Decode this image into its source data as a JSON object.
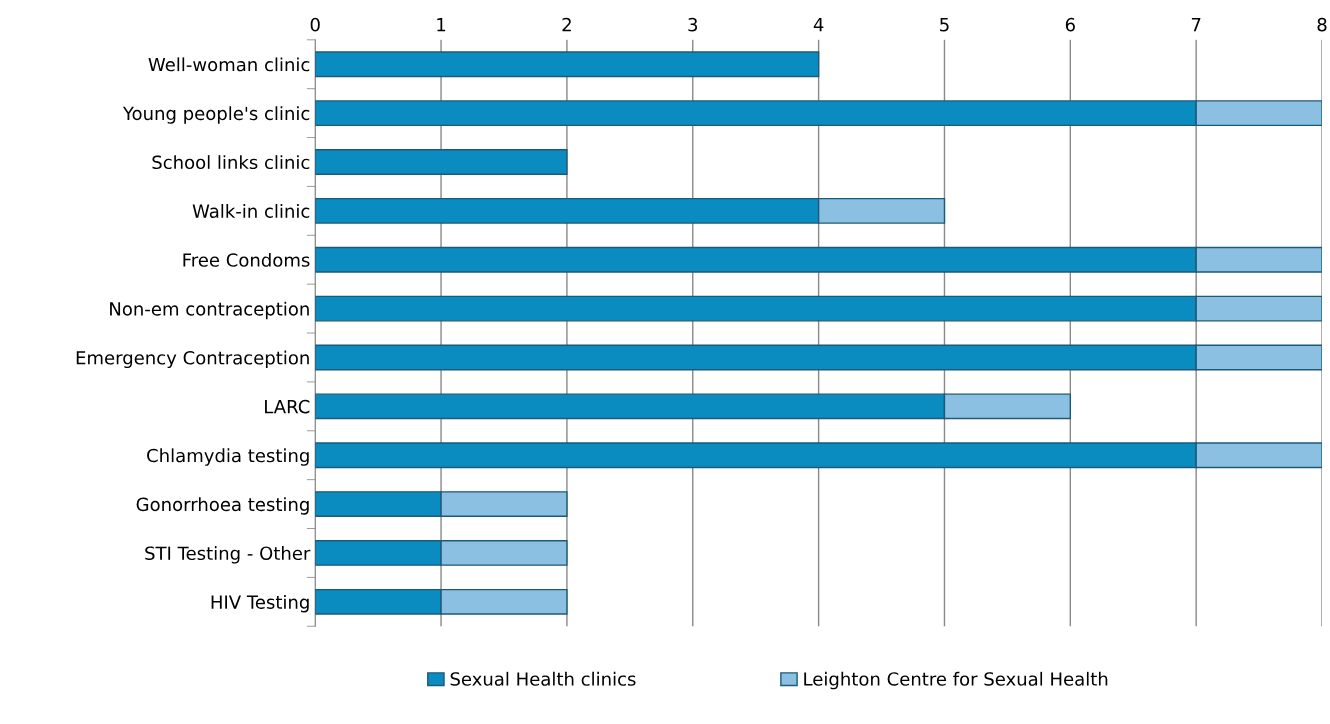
{
  "chart_data": {
    "type": "bar",
    "orientation": "horizontal",
    "stacked": true,
    "categories": [
      "Well-woman clinic",
      "Young people's clinic",
      "School links clinic",
      "Walk-in clinic",
      "Free Condoms",
      "Non-em contraception",
      "Emergency Contraception",
      "LARC",
      "Chlamydia testing",
      "Gonorrhoea testing",
      "STI Testing - Other",
      "HIV Testing"
    ],
    "series": [
      {
        "name": "Sexual Health clinics",
        "color": "#0b8cc1",
        "values": [
          4,
          7,
          2,
          4,
          7,
          7,
          7,
          5,
          7,
          1,
          1,
          1
        ]
      },
      {
        "name": "Leighton Centre for Sexual Health",
        "color": "#8cc0e2",
        "values": [
          null,
          1,
          null,
          1,
          1,
          1,
          1,
          1,
          1,
          1,
          1,
          1
        ]
      }
    ],
    "xlim": [
      0,
      8
    ],
    "xticks": [
      0,
      1,
      2,
      3,
      4,
      5,
      6,
      7,
      8
    ],
    "grid": "x",
    "legend": "bottom"
  }
}
